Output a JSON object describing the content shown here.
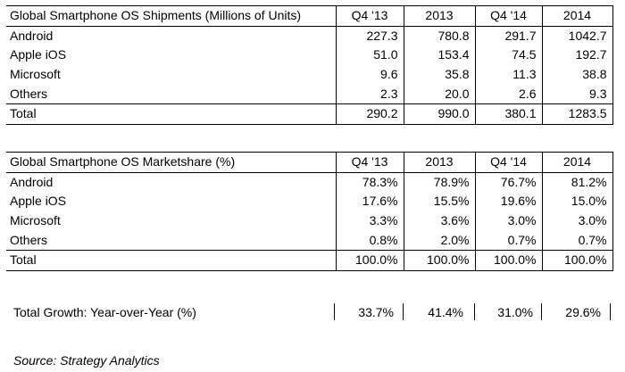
{
  "shipments": {
    "title": "Global Smartphone OS Shipments (Millions of Units)",
    "columns": [
      "Q4 '13",
      "2013",
      "Q4 '14",
      "2014"
    ],
    "rows": [
      {
        "label": "Android",
        "values": [
          "227.3",
          "780.8",
          "291.7",
          "1042.7"
        ]
      },
      {
        "label": "Apple iOS",
        "values": [
          "51.0",
          "153.4",
          "74.5",
          "192.7"
        ]
      },
      {
        "label": "Microsoft",
        "values": [
          "9.6",
          "35.8",
          "11.3",
          "38.8"
        ]
      },
      {
        "label": "Others",
        "values": [
          "2.3",
          "20.0",
          "2.6",
          "9.3"
        ]
      }
    ],
    "total": {
      "label": "Total",
      "values": [
        "290.2",
        "990.0",
        "380.1",
        "1283.5"
      ]
    }
  },
  "marketshare": {
    "title": "Global Smartphone OS Marketshare (%)",
    "columns": [
      "Q4 '13",
      "2013",
      "Q4 '14",
      "2014"
    ],
    "rows": [
      {
        "label": "Android",
        "values": [
          "78.3%",
          "78.9%",
          "76.7%",
          "81.2%"
        ]
      },
      {
        "label": "Apple iOS",
        "values": [
          "17.6%",
          "15.5%",
          "19.6%",
          "15.0%"
        ]
      },
      {
        "label": "Microsoft",
        "values": [
          "3.3%",
          "3.6%",
          "3.0%",
          "3.0%"
        ]
      },
      {
        "label": "Others",
        "values": [
          "0.8%",
          "2.0%",
          "0.7%",
          "0.7%"
        ]
      }
    ],
    "total": {
      "label": "Total",
      "values": [
        "100.0%",
        "100.0%",
        "100.0%",
        "100.0%"
      ]
    }
  },
  "growth": {
    "label": "Total Growth: Year-over-Year (%)",
    "values": [
      "33.7%",
      "41.4%",
      "31.0%",
      "29.6%"
    ]
  },
  "source": "Source: Strategy Analytics"
}
